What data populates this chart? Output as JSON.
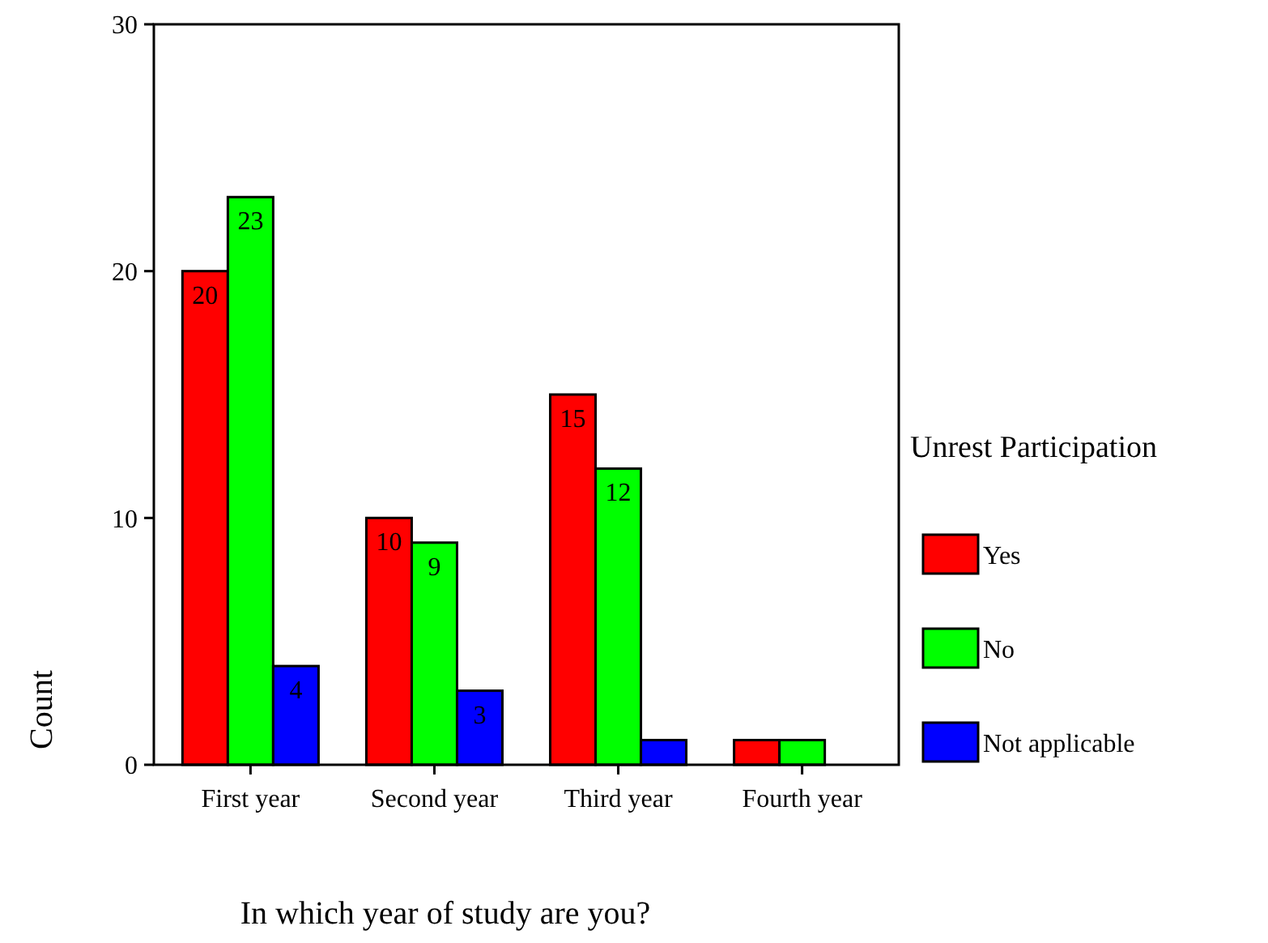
{
  "chart_data": {
    "type": "bar",
    "xlabel": "In which year of study are you?",
    "ylabel": "Count",
    "legend_title": "Unrest Participation",
    "categories": [
      "First year",
      "Second year",
      "Third year",
      "Fourth year"
    ],
    "series": [
      {
        "name": "Yes",
        "color": "#ff0000",
        "values": [
          20,
          10,
          15,
          1
        ],
        "value_labels": [
          "20",
          "10",
          "15",
          null
        ]
      },
      {
        "name": "No",
        "color": "#00ff00",
        "values": [
          23,
          9,
          12,
          1
        ],
        "value_labels": [
          "23",
          "9",
          "12",
          null
        ]
      },
      {
        "name": "Not applicable",
        "color": "#0000ff",
        "values": [
          4,
          3,
          1,
          null
        ],
        "value_labels": [
          "4",
          "3",
          null,
          null
        ]
      }
    ],
    "ylim": [
      0,
      30
    ],
    "yticks": [
      0,
      10,
      20,
      30
    ],
    "grid": false,
    "legend": "right"
  }
}
